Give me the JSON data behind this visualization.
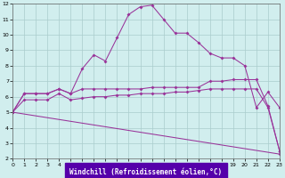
{
  "xlabel": "Windchill (Refroidissement éolien,°C)",
  "bg_color": "#d1eeee",
  "line_color": "#993399",
  "grid_color": "#aacccc",
  "xlim": [
    0,
    23
  ],
  "ylim": [
    2,
    12
  ],
  "xticks": [
    0,
    1,
    2,
    3,
    4,
    5,
    6,
    7,
    8,
    9,
    10,
    11,
    12,
    13,
    14,
    15,
    16,
    17,
    18,
    19,
    20,
    21,
    22,
    23
  ],
  "yticks": [
    2,
    3,
    4,
    5,
    6,
    7,
    8,
    9,
    10,
    11,
    12
  ],
  "curve1_x": [
    0,
    1,
    2,
    3,
    4,
    5,
    6,
    7,
    8,
    9,
    10,
    11,
    12,
    13,
    14,
    15,
    16,
    17,
    18,
    19,
    20,
    21,
    22,
    23
  ],
  "curve1_y": [
    5.0,
    6.2,
    6.2,
    6.2,
    6.5,
    6.2,
    7.8,
    8.7,
    8.3,
    9.8,
    11.3,
    11.8,
    11.9,
    11.0,
    10.1,
    10.1,
    9.5,
    8.8,
    8.5,
    8.5,
    8.0,
    5.3,
    6.3,
    5.3
  ],
  "curve2_x": [
    0,
    1,
    2,
    3,
    4,
    5,
    6,
    7,
    8,
    9,
    10,
    11,
    12,
    13,
    14,
    15,
    16,
    17,
    18,
    19,
    20,
    21,
    22,
    23
  ],
  "curve2_y": [
    5.0,
    6.2,
    6.2,
    6.2,
    6.5,
    6.2,
    6.5,
    6.5,
    6.5,
    6.5,
    6.5,
    6.5,
    6.6,
    6.6,
    6.6,
    6.6,
    6.6,
    7.0,
    7.0,
    7.1,
    7.1,
    7.1,
    5.4,
    2.5
  ],
  "curve3_x": [
    0,
    1,
    2,
    3,
    4,
    5,
    6,
    7,
    8,
    9,
    10,
    11,
    12,
    13,
    14,
    15,
    16,
    17,
    18,
    19,
    20,
    21,
    22,
    23
  ],
  "curve3_y": [
    5.0,
    5.8,
    5.8,
    5.8,
    6.2,
    5.8,
    5.9,
    6.0,
    6.0,
    6.1,
    6.1,
    6.2,
    6.2,
    6.2,
    6.3,
    6.3,
    6.4,
    6.5,
    6.5,
    6.5,
    6.5,
    6.5,
    5.3,
    2.5
  ],
  "curve4_x": [
    0,
    23
  ],
  "curve4_y": [
    5.0,
    2.3
  ]
}
